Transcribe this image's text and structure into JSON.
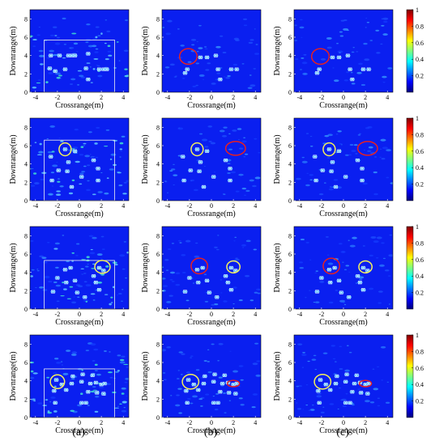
{
  "figure": {
    "column_labels": [
      "(a)",
      "(b)",
      "(c)"
    ]
  },
  "chart_data": {
    "type": "heatmap",
    "rows": 4,
    "columns": 3,
    "xlabel": "Crossrange(m)",
    "ylabel": "Downrange(m)",
    "xlim": [
      -4.5,
      4.5
    ],
    "ylim": [
      0,
      9
    ],
    "xticks": [
      -4,
      -2,
      0,
      2,
      4
    ],
    "yticks": [
      0,
      2,
      4,
      6,
      8
    ],
    "colorbar": {
      "range": [
        0,
        1
      ],
      "ticks": [
        0.2,
        0.4,
        0.6,
        0.8,
        1
      ],
      "tick_labels": [
        "0.2",
        "0.4",
        "0.6",
        "0.8",
        "1"
      ],
      "colormap": [
        "#00007f",
        "#0000ff",
        "#007fff",
        "#00ffff",
        "#7fff7f",
        "#ffff00",
        "#ff7f00",
        "#ff0000",
        "#7f0000"
      ]
    },
    "background_color": "#0a1ff0",
    "highlight_colors": {
      "yellow": "#f5f05a",
      "red": "#e82020",
      "box": "#e0e0ff"
    },
    "panels": [
      {
        "row": 0,
        "col": 0,
        "rect": [
          -3.2,
          3.2,
          0,
          5.7
        ],
        "targets": [
          [
            -2.6,
            4
          ],
          [
            -1.8,
            4
          ],
          [
            -1,
            4
          ],
          [
            -0.7,
            4
          ],
          [
            -0.4,
            4
          ],
          [
            0.8,
            4.2
          ],
          [
            -2.7,
            2.6
          ],
          [
            -2.2,
            2.3
          ],
          [
            -1.3,
            2.5
          ],
          [
            0.6,
            2.6
          ],
          [
            1.8,
            2.5
          ],
          [
            2.2,
            2.5
          ],
          [
            2.5,
            2.5
          ],
          [
            0.8,
            1.4
          ]
        ],
        "ellipses": []
      },
      {
        "row": 0,
        "col": 1,
        "rect": null,
        "targets": [
          [
            -1,
            3.8
          ],
          [
            -0.4,
            3.8
          ],
          [
            0.4,
            4
          ],
          [
            -2.2,
            2.5
          ],
          [
            -2.4,
            2.1
          ],
          [
            0.6,
            2.5
          ],
          [
            1.8,
            2.5
          ],
          [
            2.3,
            2.5
          ],
          [
            0.8,
            1.4
          ]
        ],
        "ellipses": [
          {
            "color": "red",
            "cx": -2.1,
            "cy": 3.9,
            "rx": 0.8,
            "ry": 0.85
          }
        ]
      },
      {
        "row": 0,
        "col": 2,
        "rect": null,
        "targets": [
          [
            -1,
            3.8
          ],
          [
            -0.4,
            3.8
          ],
          [
            0.4,
            4
          ],
          [
            -2.2,
            2.5
          ],
          [
            -2.4,
            2.1
          ],
          [
            0.6,
            2.5
          ],
          [
            1.8,
            2.5
          ],
          [
            2.3,
            2.5
          ],
          [
            0.8,
            1.4
          ]
        ],
        "ellipses": [
          {
            "color": "red",
            "cx": -2.1,
            "cy": 3.9,
            "rx": 0.8,
            "ry": 0.85
          }
        ]
      },
      {
        "row": 1,
        "col": 0,
        "rect": [
          -3.2,
          3.2,
          0,
          6.6
        ],
        "targets": [
          [
            -1.3,
            5.6
          ],
          [
            -0.4,
            5.4
          ],
          [
            -2.6,
            4.8
          ],
          [
            -1,
            4.2
          ],
          [
            1.3,
            4.4
          ],
          [
            -1.9,
            3.3
          ],
          [
            -1.1,
            3.2
          ],
          [
            1.7,
            3.5
          ],
          [
            -2.5,
            2.2
          ],
          [
            0.2,
            2.6
          ],
          [
            1.7,
            2.2
          ],
          [
            -0.7,
            1.5
          ]
        ],
        "ellipses": [
          {
            "color": "yellow",
            "cx": -1.3,
            "cy": 5.6,
            "rx": 0.55,
            "ry": 0.7
          }
        ]
      },
      {
        "row": 1,
        "col": 1,
        "rect": null,
        "targets": [
          [
            -1.3,
            5.6
          ],
          [
            -0.4,
            5.4
          ],
          [
            -2.6,
            4.8
          ],
          [
            -1,
            4.2
          ],
          [
            1.3,
            4.4
          ],
          [
            -1.9,
            3.3
          ],
          [
            -1.1,
            3.2
          ],
          [
            1.7,
            3.5
          ],
          [
            -2.5,
            2.2
          ],
          [
            0.2,
            2.6
          ],
          [
            1.7,
            2.2
          ],
          [
            -0.7,
            1.5
          ]
        ],
        "ellipses": [
          {
            "color": "yellow",
            "cx": -1.3,
            "cy": 5.6,
            "rx": 0.55,
            "ry": 0.7
          },
          {
            "color": "red",
            "cx": 2.2,
            "cy": 5.7,
            "rx": 0.9,
            "ry": 0.75
          }
        ]
      },
      {
        "row": 1,
        "col": 2,
        "rect": null,
        "targets": [
          [
            -1.3,
            5.6
          ],
          [
            -0.4,
            5.4
          ],
          [
            -2.6,
            4.8
          ],
          [
            -1,
            4.2
          ],
          [
            1.3,
            4.4
          ],
          [
            -1.9,
            3.3
          ],
          [
            -1.1,
            3.2
          ],
          [
            1.7,
            3.5
          ],
          [
            -2.5,
            2.2
          ],
          [
            0.2,
            2.6
          ],
          [
            1.7,
            2.2
          ],
          [
            -0.7,
            1.5
          ]
        ],
        "ellipses": [
          {
            "color": "yellow",
            "cx": -1.3,
            "cy": 5.6,
            "rx": 0.55,
            "ry": 0.7
          },
          {
            "color": "red",
            "cx": 2.2,
            "cy": 5.7,
            "rx": 0.9,
            "ry": 0.75
          }
        ]
      },
      {
        "row": 2,
        "col": 0,
        "rect": [
          -3.2,
          3.2,
          0,
          5.3
        ],
        "targets": [
          [
            -1.3,
            4.3
          ],
          [
            -0.8,
            4.5
          ],
          [
            1.8,
            4.5
          ],
          [
            2.2,
            4.2
          ],
          [
            -2,
            3.4
          ],
          [
            -1.2,
            2.9
          ],
          [
            -0.4,
            3.1
          ],
          [
            1.3,
            3.6
          ],
          [
            1.5,
            2.9
          ],
          [
            -2.4,
            1.9
          ],
          [
            -0.2,
            1.8
          ],
          [
            1.8,
            2.1
          ],
          [
            0.5,
            1.3
          ]
        ],
        "ellipses": [
          {
            "color": "yellow",
            "cx": 2.1,
            "cy": 4.6,
            "rx": 0.7,
            "ry": 0.7
          }
        ]
      },
      {
        "row": 2,
        "col": 1,
        "rect": null,
        "targets": [
          [
            -1.3,
            4.3
          ],
          [
            -0.8,
            4.5
          ],
          [
            1.8,
            4.5
          ],
          [
            2.2,
            4.2
          ],
          [
            -2,
            3.4
          ],
          [
            -1.2,
            2.9
          ],
          [
            -0.4,
            3.1
          ],
          [
            1.3,
            3.6
          ],
          [
            1.5,
            2.9
          ],
          [
            -2.4,
            1.9
          ],
          [
            -0.2,
            1.8
          ],
          [
            1.8,
            2.1
          ],
          [
            0.5,
            1.3
          ]
        ],
        "ellipses": [
          {
            "color": "red",
            "cx": -1.1,
            "cy": 4.7,
            "rx": 0.75,
            "ry": 0.85
          },
          {
            "color": "yellow",
            "cx": 2.0,
            "cy": 4.6,
            "rx": 0.6,
            "ry": 0.65
          }
        ]
      },
      {
        "row": 2,
        "col": 2,
        "rect": null,
        "targets": [
          [
            -1.3,
            4.3
          ],
          [
            -0.8,
            4.5
          ],
          [
            1.8,
            4.5
          ],
          [
            2.2,
            4.2
          ],
          [
            -2,
            3.4
          ],
          [
            -1.2,
            2.9
          ],
          [
            -0.4,
            3.1
          ],
          [
            1.3,
            3.6
          ],
          [
            1.5,
            2.9
          ],
          [
            -2.4,
            1.9
          ],
          [
            -0.2,
            1.8
          ],
          [
            1.8,
            2.1
          ],
          [
            0.5,
            1.3
          ]
        ],
        "ellipses": [
          {
            "color": "red",
            "cx": -1.1,
            "cy": 4.7,
            "rx": 0.75,
            "ry": 0.85
          },
          {
            "color": "yellow",
            "cx": 2.0,
            "cy": 4.6,
            "rx": 0.6,
            "ry": 0.65
          }
        ]
      },
      {
        "row": 3,
        "col": 0,
        "rect": [
          -3.2,
          3.2,
          0,
          5.3
        ],
        "targets": [
          [
            -2.1,
            4.1
          ],
          [
            -1.6,
            3.6
          ],
          [
            -0.6,
            4.5
          ],
          [
            0.3,
            4.7
          ],
          [
            1.2,
            4.6
          ],
          [
            -0.7,
            3.7
          ],
          [
            0.2,
            3.9
          ],
          [
            1,
            3.7
          ],
          [
            1.5,
            3.8
          ],
          [
            2,
            3.6
          ],
          [
            2.3,
            3.7
          ],
          [
            -2.3,
            2.9
          ],
          [
            -1.2,
            3
          ],
          [
            0.8,
            2.8
          ],
          [
            1.6,
            2.7
          ],
          [
            2.2,
            2.6
          ],
          [
            -2.2,
            1.6
          ],
          [
            0.2,
            1.6
          ],
          [
            0.6,
            1.6
          ]
        ],
        "ellipses": [
          {
            "color": "yellow",
            "cx": -2.0,
            "cy": 3.9,
            "rx": 0.65,
            "ry": 0.75
          }
        ]
      },
      {
        "row": 3,
        "col": 1,
        "rect": null,
        "targets": [
          [
            -2.1,
            4.1
          ],
          [
            -1.6,
            3.6
          ],
          [
            -0.6,
            4.5
          ],
          [
            0.3,
            4.7
          ],
          [
            1.2,
            4.6
          ],
          [
            -0.7,
            3.7
          ],
          [
            0.2,
            3.9
          ],
          [
            1,
            3.7
          ],
          [
            1.5,
            3.8
          ],
          [
            2,
            3.6
          ],
          [
            2.3,
            3.7
          ],
          [
            -2.3,
            2.9
          ],
          [
            -1.2,
            3
          ],
          [
            0.8,
            2.8
          ],
          [
            1.6,
            2.7
          ],
          [
            2.2,
            2.6
          ],
          [
            -2.2,
            1.6
          ],
          [
            0.2,
            1.6
          ],
          [
            0.6,
            1.6
          ]
        ],
        "ellipses": [
          {
            "color": "yellow",
            "cx": -1.9,
            "cy": 3.9,
            "rx": 0.75,
            "ry": 0.8
          },
          {
            "color": "red",
            "cx": 2.0,
            "cy": 3.7,
            "rx": 0.55,
            "ry": 0.35
          }
        ]
      },
      {
        "row": 3,
        "col": 2,
        "rect": null,
        "targets": [
          [
            -2.1,
            4.1
          ],
          [
            -1.6,
            3.6
          ],
          [
            -0.6,
            4.5
          ],
          [
            0.3,
            4.7
          ],
          [
            1.2,
            4.6
          ],
          [
            -0.7,
            3.7
          ],
          [
            0.2,
            3.9
          ],
          [
            1,
            3.7
          ],
          [
            1.5,
            3.8
          ],
          [
            2,
            3.6
          ],
          [
            2.3,
            3.7
          ],
          [
            -2.3,
            2.9
          ],
          [
            -1.2,
            3
          ],
          [
            0.8,
            2.8
          ],
          [
            1.6,
            2.7
          ],
          [
            2.2,
            2.6
          ],
          [
            -2.2,
            1.6
          ],
          [
            0.2,
            1.6
          ],
          [
            0.6,
            1.6
          ]
        ],
        "ellipses": [
          {
            "color": "yellow",
            "cx": -1.9,
            "cy": 3.9,
            "rx": 0.75,
            "ry": 0.8
          },
          {
            "color": "red",
            "cx": 2.0,
            "cy": 3.7,
            "rx": 0.55,
            "ry": 0.35
          }
        ]
      }
    ]
  }
}
